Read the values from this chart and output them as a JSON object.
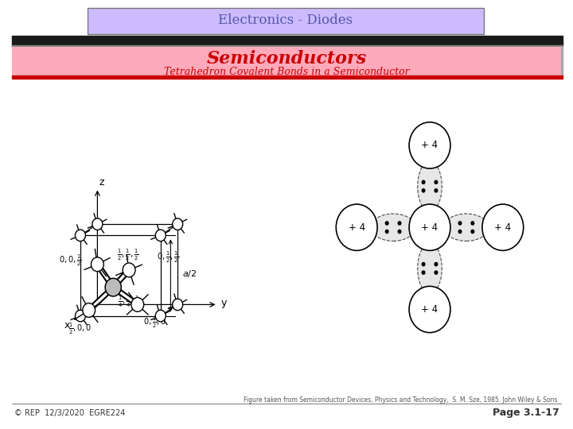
{
  "title_bar_text": "Electronics - Diodes",
  "title_bar_bg": "#ccbbff",
  "subtitle_bar_bg": "#ffaabb",
  "subtitle_text": "Semiconductors",
  "subtitle_color": "#cc0000",
  "subsubtitle_text": "Tetrahedron Covalent Bonds in a Semiconductor",
  "subsubtitle_color": "#cc0000",
  "footer_left": "© REP  12/3/2020  EGRE224",
  "footer_right": "Page 3.1-17",
  "footer_ref": "Figure taken from Semiconductor Devices, Physics and Technology,  S. M. Sze, 1985. John Wiley & Sons",
  "bg_color": "#ffffff"
}
